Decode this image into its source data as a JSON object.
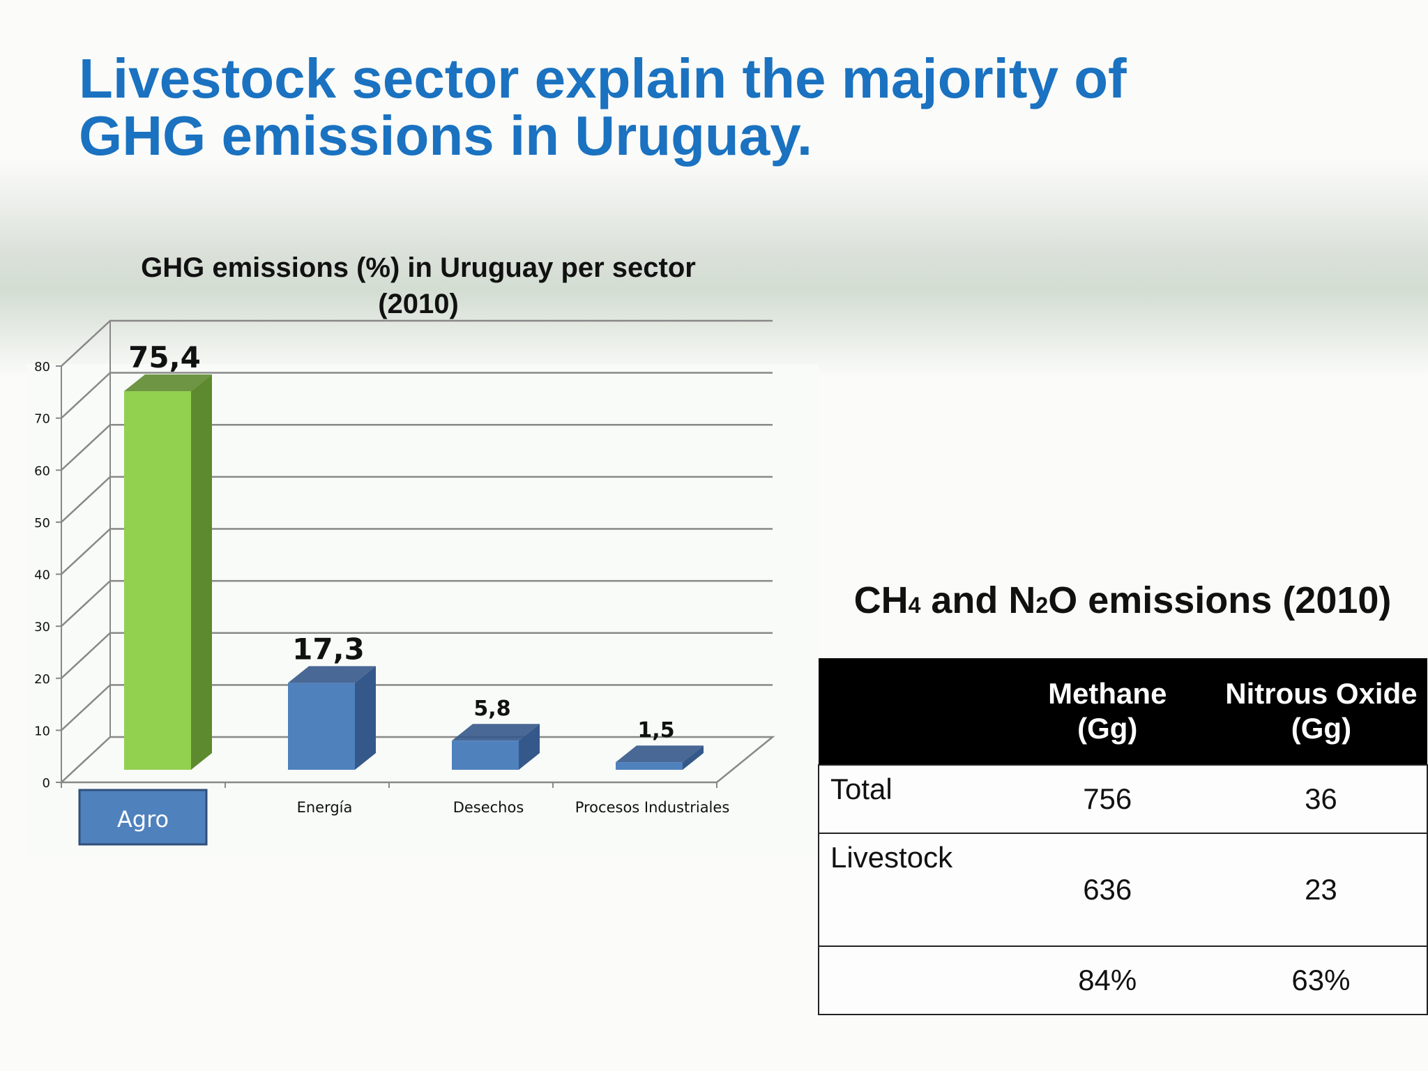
{
  "slide": {
    "title_line1": "Livestock sector explain the majority of",
    "title_line2": "GHG emissions in Uruguay.",
    "title_color": "#1a72c0"
  },
  "chart_data": {
    "type": "bar",
    "title_line1": "GHG emissions (%) in Uruguay per sector",
    "title_line2": "(2010)",
    "categories": [
      "Agro",
      "Energía",
      "Desechos",
      "Procesos Industriales"
    ],
    "values": [
      75.4,
      17.3,
      5.8,
      1.5
    ],
    "data_labels": [
      "75,4",
      "17,3",
      "5,8",
      "1,5"
    ],
    "ylim": [
      0,
      80
    ],
    "y_ticks": [
      "0",
      "10",
      "20",
      "30",
      "40",
      "50",
      "60",
      "70",
      "80"
    ],
    "grid": true,
    "style": "3d-column",
    "highlight_category": "Agro",
    "colors": {
      "highlight": "#92d050",
      "highlight_side": "#5e8a2f",
      "default": "#4f81bd",
      "default_side": "#35588a",
      "grid": "#888888"
    }
  },
  "table": {
    "title_prefix": "CH",
    "title_sub1": "4",
    "title_mid": " and N",
    "title_sub2": "2",
    "title_suffix": "O emissions (2010)",
    "columns": [
      {
        "line1": "Methane",
        "line2": "(Gg)"
      },
      {
        "line1": "Nitrous Oxide",
        "line2": "(Gg)"
      }
    ],
    "rows": [
      {
        "label": "Total",
        "values": [
          "756",
          "36"
        ]
      },
      {
        "label": "Livestock",
        "values": [
          "636",
          "23"
        ]
      },
      {
        "label": "",
        "values": [
          "84%",
          "63%"
        ]
      }
    ]
  }
}
